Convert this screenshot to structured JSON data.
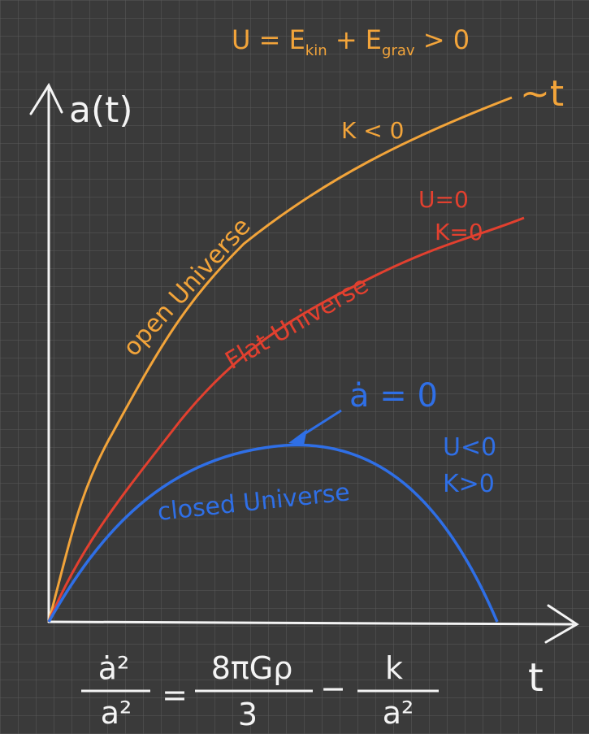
{
  "axes": {
    "y_label": "a(t)",
    "x_label": "t"
  },
  "energy": {
    "parts": [
      "U = E",
      "kin",
      " + E",
      "grav",
      " > 0"
    ]
  },
  "curves": [
    {
      "label": "open Universe",
      "conditions": [
        "K < 0"
      ],
      "asymptote": "~t"
    },
    {
      "label": "Flat Universe",
      "conditions": [
        "U=0",
        "K=0"
      ]
    },
    {
      "label": "closed Universe",
      "conditions": [
        "U<0",
        "K>0"
      ],
      "note": "ȧ = 0"
    }
  ],
  "equation": {
    "lhs_num": "ȧ²",
    "lhs_den": "a²",
    "equals": "=",
    "term1_num": "8πGρ",
    "term1_den": "3",
    "minus": "−",
    "term2_num": "k",
    "term2_den": "a²"
  }
}
